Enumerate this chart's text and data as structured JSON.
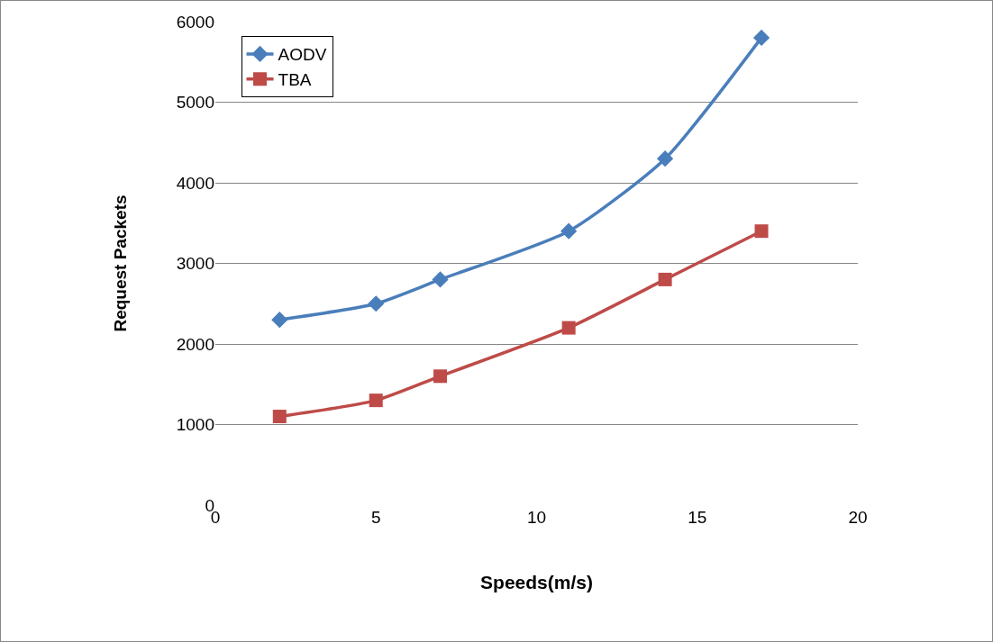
{
  "chart_data": {
    "type": "line",
    "xlabel": "Speeds(m/s)",
    "ylabel": "Request Packets",
    "x": [
      2,
      5,
      7,
      11,
      14,
      17
    ],
    "series": [
      {
        "name": "AODV",
        "color": "#4a7ebb",
        "marker": "diamond",
        "values": [
          2300,
          2500,
          2800,
          3400,
          4300,
          5800
        ]
      },
      {
        "name": "TBA",
        "color": "#be4b48",
        "marker": "square",
        "values": [
          1100,
          1300,
          1600,
          2200,
          2800,
          3400
        ]
      }
    ],
    "xlim": [
      0,
      20
    ],
    "xticks": [
      0,
      5,
      10,
      15,
      20
    ],
    "ylim": [
      0,
      6000
    ],
    "yticks": [
      0,
      1000,
      2000,
      3000,
      4000,
      5000,
      6000
    ],
    "grid": "y",
    "legend": "top left",
    "line_style": "solid"
  }
}
